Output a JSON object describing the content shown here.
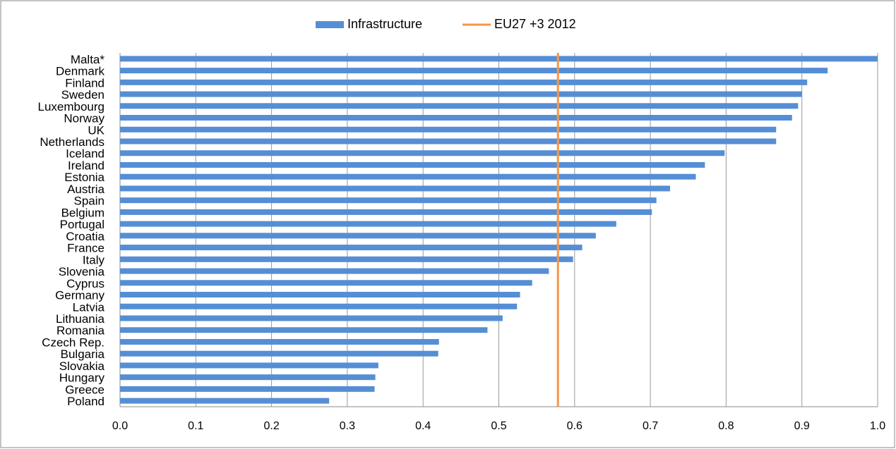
{
  "chart_data": {
    "type": "bar",
    "orientation": "horizontal",
    "categories": [
      "Malta*",
      "Denmark",
      "Finland",
      "Sweden",
      "Luxembourg",
      "Norway",
      "UK",
      "Netherlands",
      "Iceland",
      "Ireland",
      "Estonia",
      "Austria",
      "Spain",
      "Belgium",
      "Portugal",
      "Croatia",
      "France",
      "Italy",
      "Slovenia",
      "Cyprus",
      "Germany",
      "Latvia",
      "Lithuania",
      "Romania",
      "Czech Rep.",
      "Bulgaria",
      "Slovakia",
      "Hungary",
      "Greece",
      "Poland"
    ],
    "series": [
      {
        "name": "Infrastructure",
        "color": "#558ed5",
        "values": [
          1.0,
          0.934,
          0.907,
          0.9,
          0.895,
          0.887,
          0.866,
          0.866,
          0.798,
          0.772,
          0.76,
          0.726,
          0.708,
          0.702,
          0.655,
          0.628,
          0.61,
          0.598,
          0.566,
          0.544,
          0.528,
          0.524,
          0.505,
          0.485,
          0.421,
          0.42,
          0.341,
          0.337,
          0.336,
          0.276
        ]
      }
    ],
    "reference": {
      "name": "EU27 +3 2012",
      "value": 0.578,
      "color": "#f79646"
    },
    "xlim": [
      0,
      1
    ],
    "xticks": [
      {
        "value": 0,
        "label": "0.0"
      },
      0.1,
      0.2,
      0.3,
      0.4,
      0.5,
      0.6,
      0.7,
      0.8,
      0.9,
      {
        "value": 1,
        "label": "1.0"
      }
    ],
    "grid": true,
    "legend": "top"
  }
}
